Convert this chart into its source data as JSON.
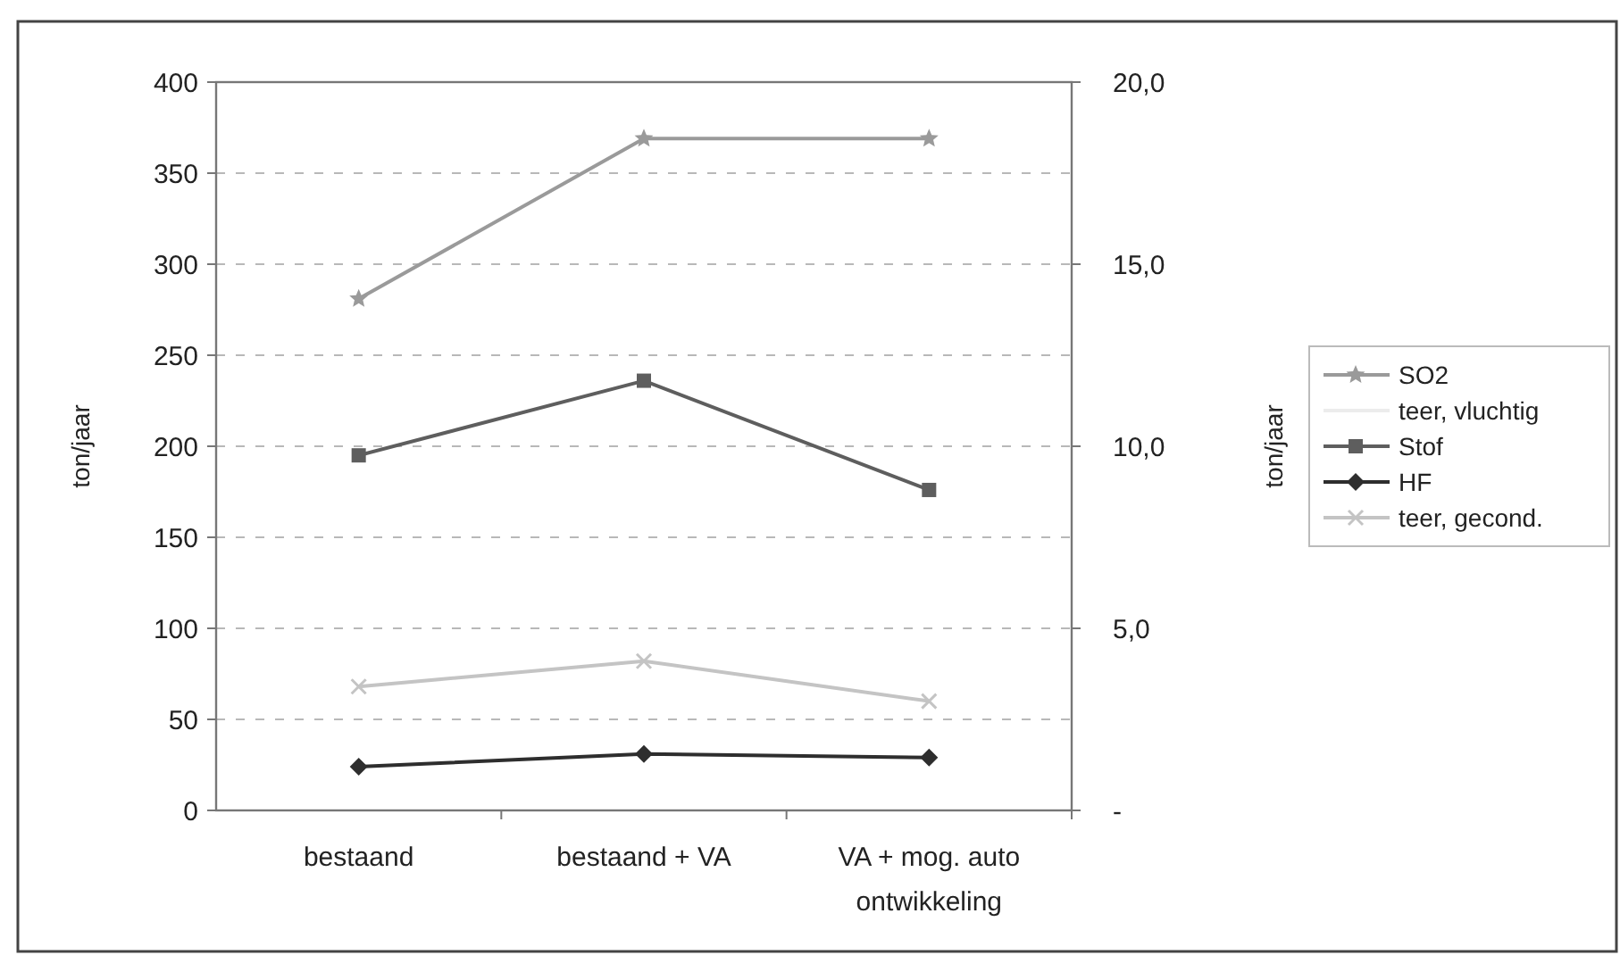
{
  "chart_data": {
    "type": "line",
    "ylabel": "ton/jaar",
    "y2label": "ton/jaar",
    "categories": [
      "bestaand",
      "bestaand + VA",
      "VA + mog. auto ontwikkeling"
    ],
    "ylim": [
      0,
      400
    ],
    "yticks": [
      0,
      50,
      100,
      150,
      200,
      250,
      300,
      350,
      400
    ],
    "y2lim": [
      0,
      20
    ],
    "y2ticks": [
      {
        "value": 0,
        "label": "-"
      },
      {
        "value": 5,
        "label": "5,0"
      },
      {
        "value": 10,
        "label": "10,0"
      },
      {
        "value": 15,
        "label": "15,0"
      },
      {
        "value": 20,
        "label": "20,0"
      }
    ],
    "grid": "y",
    "legend": "right",
    "line_style": "solid",
    "series": [
      {
        "name": "SO2",
        "color": "#9a9a9a",
        "marker": "star",
        "values": [
          281,
          369,
          369
        ]
      },
      {
        "name": "teer, vluchtig",
        "color": "#ececec",
        "marker": "none",
        "values": [
          null,
          null,
          null
        ]
      },
      {
        "name": "Stof",
        "color": "#5e5e5e",
        "marker": "square",
        "values": [
          195,
          236,
          176
        ]
      },
      {
        "name": "HF",
        "color": "#2e2e2e",
        "marker": "diamond",
        "values": [
          24,
          31,
          29
        ]
      },
      {
        "name": "teer, gecond.",
        "color": "#c4c4c4",
        "marker": "cross",
        "values": [
          68,
          82,
          60
        ]
      }
    ]
  }
}
